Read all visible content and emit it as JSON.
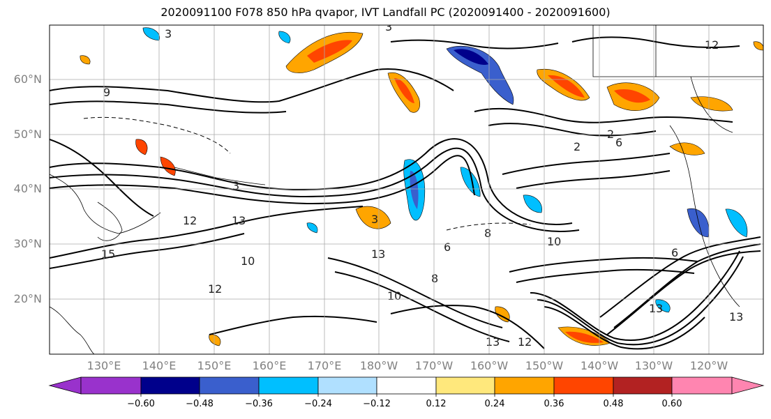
{
  "title": "2020091100 F078 850 hPa qvapor, IVT Landfall PC (2020091400 - 2020091600)",
  "lat_labels": [
    "60°N",
    "50°N",
    "40°N",
    "30°N",
    "20°N"
  ],
  "lon_labels": [
    "130°E",
    "140°E",
    "150°E",
    "160°E",
    "170°E",
    "180°W",
    "170°W",
    "160°W",
    "150°W",
    "140°W",
    "130°W",
    "120°W"
  ],
  "colorbar": {
    "ticks": [
      "−0.60",
      "−0.48",
      "−0.36",
      "−0.24",
      "−0.12",
      "0.12",
      "0.24",
      "0.36",
      "0.48",
      "0.60"
    ],
    "colors": [
      "#9932cc",
      "#00008b",
      "#3a5fcd",
      "#00bfff",
      "#b0e0ff",
      "#ffffff",
      "#ffe87c",
      "#ffa500",
      "#ff4500",
      "#b22222",
      "#ff85b0"
    ]
  },
  "contour_labels": [
    "3",
    "3",
    "2",
    "9",
    "3",
    "12",
    "13",
    "15",
    "3",
    "6",
    "12",
    "10",
    "13",
    "10",
    "8",
    "8",
    "10",
    "2",
    "6",
    "13",
    "12",
    "13",
    "6",
    "13",
    "12"
  ]
}
